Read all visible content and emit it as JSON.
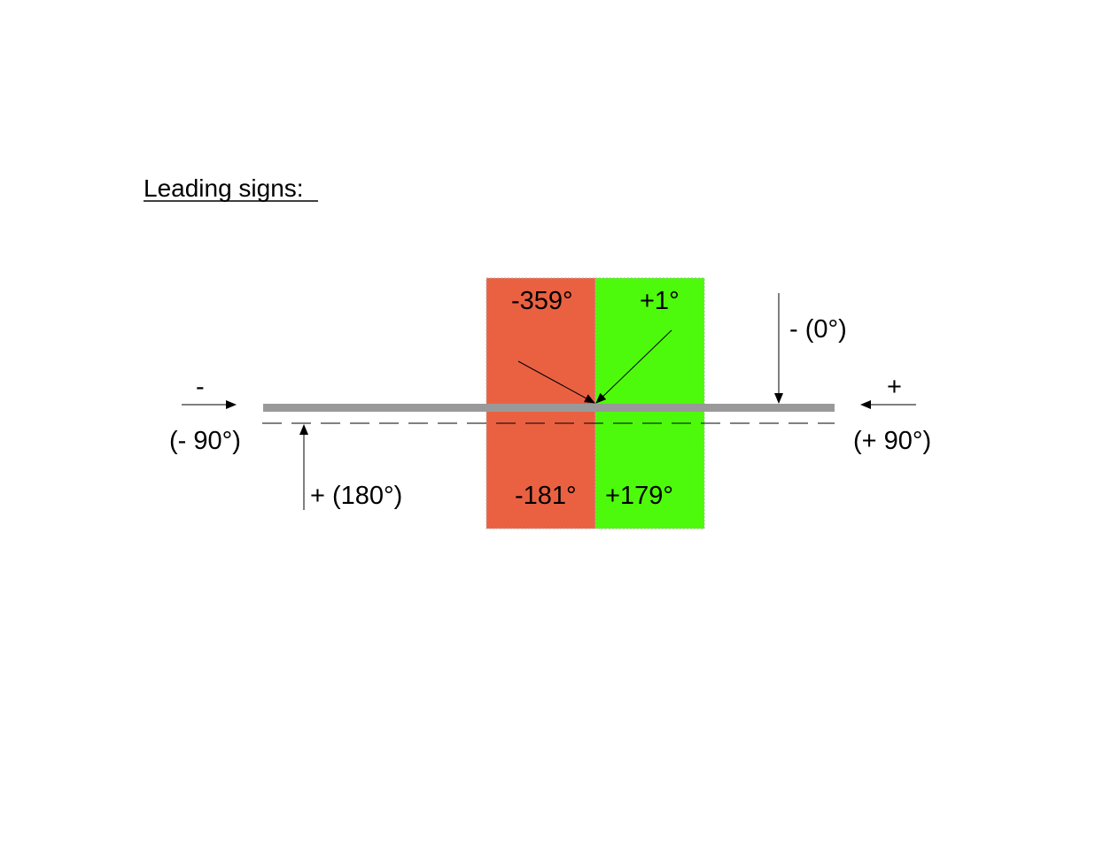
{
  "title": "Leading signs:",
  "colors": {
    "negative_zone": "#EA6142",
    "positive_zone": "#4EFA0B",
    "bar": "#999999",
    "line": "#000000",
    "background": "#FFFFFF"
  },
  "zones": {
    "negative": {
      "top_label": "-359°",
      "bottom_label": "-181°"
    },
    "positive": {
      "top_label": "+1°",
      "bottom_label": "+179°"
    }
  },
  "arrows": {
    "left": {
      "sign": "-",
      "angle": "(- 90°)"
    },
    "right": {
      "sign": "+",
      "angle": "(+ 90°)"
    },
    "top": {
      "label": "- (0°)"
    },
    "bottom": {
      "label": "+ (180°)"
    }
  }
}
